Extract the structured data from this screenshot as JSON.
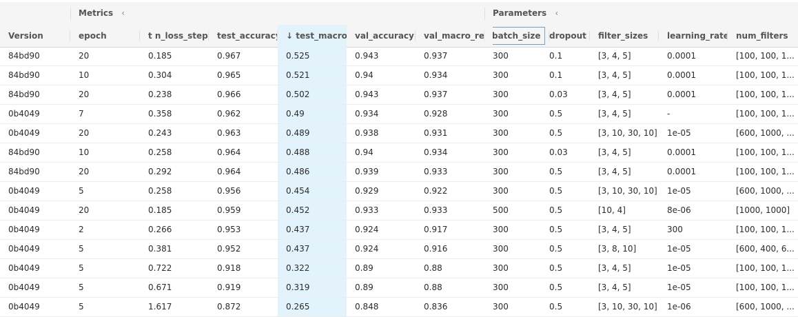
{
  "groups": {
    "metrics": {
      "label": "Metrics",
      "icon": "chevron-left-icon"
    },
    "parameters": {
      "label": "Parameters",
      "icon": "chevron-left-icon"
    }
  },
  "columns": [
    {
      "key": "version",
      "label": "Version"
    },
    {
      "key": "epoch",
      "label": "epoch"
    },
    {
      "key": "train_loss_step",
      "label": "t n_loss_step"
    },
    {
      "key": "test_accuracy",
      "label": "test_accuracy"
    },
    {
      "key": "test_macro_recall",
      "label": "test_macro_re",
      "sort_icon": "↓"
    },
    {
      "key": "val_accuracy",
      "label": "val_accuracy"
    },
    {
      "key": "val_macro_recall",
      "label": "val_macro_reca"
    },
    {
      "key": "batch_size",
      "label": "batch_size"
    },
    {
      "key": "dropout",
      "label": "dropout"
    },
    {
      "key": "filter_sizes",
      "label": "filter_sizes"
    },
    {
      "key": "learning_rate",
      "label": "learning_rate"
    },
    {
      "key": "num_filters",
      "label": "num_filters"
    }
  ],
  "rows": [
    [
      "84bd90",
      "20",
      "0.185",
      "0.967",
      "0.525",
      "0.943",
      "0.937",
      "300",
      "0.1",
      "[3, 4, 5]",
      "0.0001",
      "[100, 100, 1..."
    ],
    [
      "84bd90",
      "10",
      "0.304",
      "0.965",
      "0.521",
      "0.94",
      "0.934",
      "300",
      "0.1",
      "[3, 4, 5]",
      "0.0001",
      "[100, 100, 1..."
    ],
    [
      "84bd90",
      "20",
      "0.238",
      "0.966",
      "0.502",
      "0.943",
      "0.937",
      "300",
      "0.03",
      "[3, 4, 5]",
      "0.0001",
      "[100, 100, 1..."
    ],
    [
      "0b4049",
      "7",
      "0.358",
      "0.962",
      "0.49",
      "0.934",
      "0.928",
      "300",
      "0.5",
      "[3, 4, 5]",
      "-",
      "[100, 100, 1..."
    ],
    [
      "0b4049",
      "20",
      "0.243",
      "0.963",
      "0.489",
      "0.938",
      "0.931",
      "300",
      "0.5",
      "[3, 10, 30, 10]",
      "1e-05",
      "[600, 1000, ..."
    ],
    [
      "84bd90",
      "10",
      "0.258",
      "0.964",
      "0.488",
      "0.94",
      "0.934",
      "300",
      "0.03",
      "[3, 4, 5]",
      "0.0001",
      "[100, 100, 1..."
    ],
    [
      "84bd90",
      "20",
      "0.292",
      "0.964",
      "0.486",
      "0.939",
      "0.933",
      "300",
      "0.5",
      "[3, 4, 5]",
      "0.0001",
      "[100, 100, 1..."
    ],
    [
      "0b4049",
      "5",
      "0.258",
      "0.956",
      "0.454",
      "0.929",
      "0.922",
      "300",
      "0.5",
      "[3, 10, 30, 10]",
      "1e-05",
      "[600, 1000, ..."
    ],
    [
      "0b4049",
      "20",
      "0.185",
      "0.959",
      "0.452",
      "0.933",
      "0.933",
      "500",
      "0.5",
      "[10, 4]",
      "8e-06",
      "[1000, 1000]"
    ],
    [
      "0b4049",
      "2",
      "0.266",
      "0.953",
      "0.437",
      "0.924",
      "0.917",
      "300",
      "0.5",
      "[3, 4, 5]",
      "300",
      "[100, 100, 1..."
    ],
    [
      "0b4049",
      "5",
      "0.381",
      "0.952",
      "0.437",
      "0.924",
      "0.916",
      "300",
      "0.5",
      "[3, 8, 10]",
      "1e-05",
      "[600, 400, 6..."
    ],
    [
      "0b4049",
      "5",
      "0.722",
      "0.918",
      "0.322",
      "0.89",
      "0.88",
      "300",
      "0.5",
      "[3, 4, 5]",
      "1e-05",
      "[100, 100, 1..."
    ],
    [
      "0b4049",
      "5",
      "0.671",
      "0.919",
      "0.319",
      "0.89",
      "0.88",
      "300",
      "0.5",
      "[3, 4, 5]",
      "1e-05",
      "[100, 100, 1..."
    ],
    [
      "0b4049",
      "5",
      "1.617",
      "0.872",
      "0.265",
      "0.848",
      "0.836",
      "300",
      "0.5",
      "[3, 10, 30, 10]",
      "1e-06",
      "[600, 1000, ..."
    ]
  ],
  "colors": {
    "sorted_column_bg": "#e3f3fb",
    "header_bg": "#f5f5f6",
    "focus_border": "#6fa0c9"
  }
}
